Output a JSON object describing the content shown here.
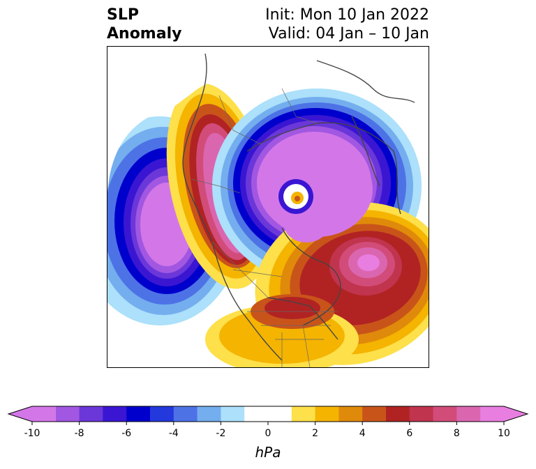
{
  "title": {
    "variable": "SLP",
    "type": "Anomaly",
    "init": "Init: Mon 10 Jan 2022",
    "valid": "Valid: 04 Jan – 10 Jan"
  },
  "colorbar": {
    "min": -10,
    "max": 10,
    "step": 1,
    "ticks": [
      "-10",
      "-8",
      "-6",
      "-4",
      "-2",
      "0",
      "2",
      "4",
      "6",
      "8",
      "10"
    ],
    "unit": "hPa",
    "colors": [
      "#d377e8",
      "#a257e2",
      "#6b37d9",
      "#3a16d3",
      "#0000cc",
      "#2339dd",
      "#4d72e6",
      "#74aeee",
      "#ace0fb",
      "#ffffff",
      "#ffffff",
      "#fde04a",
      "#f4b400",
      "#e08a0b",
      "#c9541a",
      "#b12323",
      "#c1344e",
      "#d24c7a",
      "#db66b0",
      "#e87ee0"
    ],
    "extend": "both"
  },
  "map_data": {
    "projection": "north-polar-stereographic",
    "features": [
      {
        "name": "north-pacific-low",
        "sign": "negative",
        "peak": -10
      },
      {
        "name": "western-north-america-high",
        "sign": "positive",
        "peak": 9
      },
      {
        "name": "arctic-low",
        "sign": "negative",
        "peak": -10
      },
      {
        "name": "north-atlantic-high",
        "sign": "positive",
        "peak": 10
      },
      {
        "name": "eastern-us-high",
        "sign": "positive",
        "peak": 6
      }
    ]
  }
}
